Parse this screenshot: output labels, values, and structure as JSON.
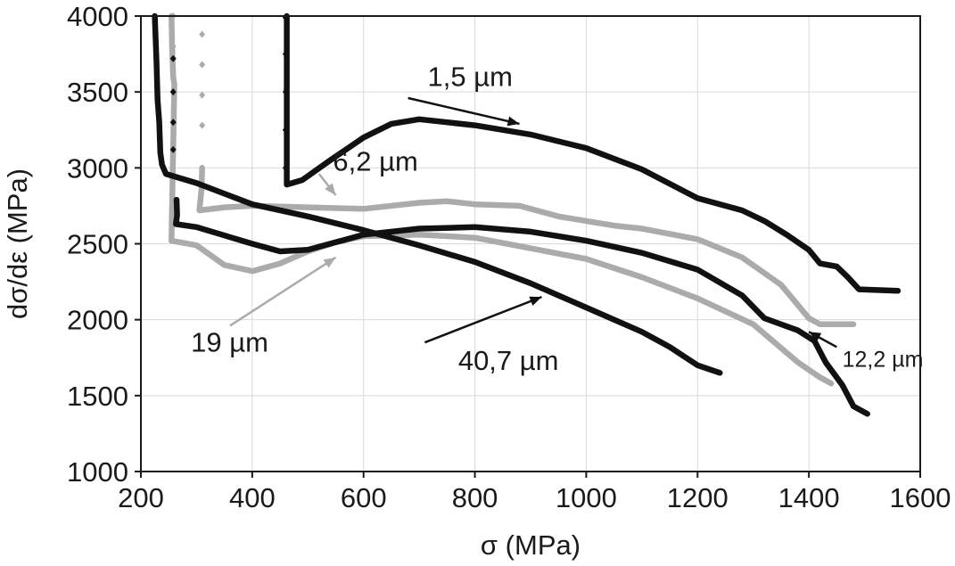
{
  "chart_data": {
    "type": "line",
    "title": "",
    "xlabel": "σ (MPa)",
    "ylabel": "dσ/dε (MPa)",
    "xlim": [
      200,
      1600
    ],
    "ylim": [
      1000,
      4000
    ],
    "xticks": [
      200,
      400,
      600,
      800,
      1000,
      1200,
      1400,
      1600
    ],
    "yticks": [
      1000,
      1500,
      2000,
      2500,
      3000,
      3500,
      4000
    ],
    "xtick_labels": [
      "200",
      "400",
      "600",
      "800",
      "1000",
      "1200",
      "1400",
      "1600"
    ],
    "ytick_labels": [
      "1000",
      "1500",
      "2000",
      "2500",
      "3000",
      "3500",
      "4000"
    ],
    "grid": true,
    "colors": {
      "black": "#111111",
      "gray": "#ababab",
      "axis": "#1a1a1a",
      "grid": "#d9d9d9"
    },
    "series": [
      {
        "name": "1,5 µm",
        "color": "black",
        "points": [
          [
            462,
            4000
          ],
          [
            462,
            3600
          ],
          [
            462,
            3200
          ],
          [
            462,
            2890
          ],
          [
            490,
            2920
          ],
          [
            540,
            3050
          ],
          [
            600,
            3200
          ],
          [
            650,
            3290
          ],
          [
            700,
            3320
          ],
          [
            800,
            3280
          ],
          [
            900,
            3220
          ],
          [
            1000,
            3130
          ],
          [
            1100,
            2990
          ],
          [
            1200,
            2800
          ],
          [
            1280,
            2720
          ],
          [
            1320,
            2650
          ],
          [
            1360,
            2560
          ],
          [
            1400,
            2460
          ],
          [
            1420,
            2370
          ],
          [
            1450,
            2350
          ],
          [
            1470,
            2280
          ],
          [
            1490,
            2200
          ],
          [
            1560,
            2190
          ]
        ],
        "spike_markers": [
          [
            460,
            3990
          ],
          [
            460,
            3750
          ],
          [
            460,
            3500
          ],
          [
            460,
            3250
          ],
          [
            460,
            3000
          ]
        ]
      },
      {
        "name": "6,2 µm",
        "color": "gray",
        "points": [
          [
            310,
            3000
          ],
          [
            309,
            2860
          ],
          [
            305,
            2720
          ],
          [
            350,
            2740
          ],
          [
            400,
            2750
          ],
          [
            500,
            2740
          ],
          [
            600,
            2730
          ],
          [
            700,
            2770
          ],
          [
            750,
            2780
          ],
          [
            800,
            2760
          ],
          [
            880,
            2750
          ],
          [
            950,
            2680
          ],
          [
            1000,
            2650
          ],
          [
            1050,
            2620
          ],
          [
            1100,
            2600
          ],
          [
            1200,
            2530
          ],
          [
            1280,
            2410
          ],
          [
            1350,
            2230
          ],
          [
            1400,
            2010
          ],
          [
            1420,
            1970
          ],
          [
            1480,
            1970
          ]
        ],
        "spike_markers": [
          [
            310,
            3880
          ],
          [
            310,
            3680
          ],
          [
            310,
            3480
          ],
          [
            310,
            3280
          ]
        ]
      },
      {
        "name": "19 µm",
        "color": "gray",
        "points": [
          [
            255,
            4000
          ],
          [
            256,
            3800
          ],
          [
            258,
            3600
          ],
          [
            260,
            3550
          ],
          [
            255,
            2520
          ],
          [
            300,
            2490
          ],
          [
            350,
            2360
          ],
          [
            400,
            2320
          ],
          [
            450,
            2370
          ],
          [
            500,
            2450
          ],
          [
            550,
            2510
          ],
          [
            600,
            2550
          ],
          [
            700,
            2560
          ],
          [
            800,
            2540
          ],
          [
            900,
            2470
          ],
          [
            1000,
            2400
          ],
          [
            1100,
            2280
          ],
          [
            1200,
            2140
          ],
          [
            1300,
            1970
          ],
          [
            1380,
            1720
          ],
          [
            1420,
            1620
          ],
          [
            1440,
            1580
          ]
        ],
        "spike_markers": [
          [
            258,
            4000
          ],
          [
            258,
            3800
          ],
          [
            258,
            3600
          ]
        ]
      },
      {
        "name": "12,2 µm",
        "color": "black",
        "points": [
          [
            264,
            2790
          ],
          [
            265,
            2690
          ],
          [
            263,
            2630
          ],
          [
            300,
            2610
          ],
          [
            400,
            2500
          ],
          [
            450,
            2450
          ],
          [
            500,
            2460
          ],
          [
            550,
            2510
          ],
          [
            600,
            2560
          ],
          [
            700,
            2600
          ],
          [
            800,
            2610
          ],
          [
            900,
            2580
          ],
          [
            1000,
            2520
          ],
          [
            1100,
            2440
          ],
          [
            1200,
            2330
          ],
          [
            1280,
            2160
          ],
          [
            1320,
            2010
          ],
          [
            1380,
            1930
          ],
          [
            1410,
            1860
          ],
          [
            1430,
            1720
          ],
          [
            1460,
            1570
          ],
          [
            1480,
            1430
          ],
          [
            1505,
            1380
          ]
        ],
        "spike_markers": []
      },
      {
        "name": "40,7 µm",
        "color": "black",
        "points": [
          [
            225,
            4000
          ],
          [
            228,
            3700
          ],
          [
            230,
            3450
          ],
          [
            233,
            3300
          ],
          [
            235,
            3100
          ],
          [
            238,
            3020
          ],
          [
            245,
            2960
          ],
          [
            300,
            2900
          ],
          [
            400,
            2760
          ],
          [
            500,
            2680
          ],
          [
            600,
            2590
          ],
          [
            700,
            2490
          ],
          [
            800,
            2380
          ],
          [
            900,
            2240
          ],
          [
            1000,
            2080
          ],
          [
            1100,
            1920
          ],
          [
            1150,
            1820
          ],
          [
            1200,
            1700
          ],
          [
            1240,
            1650
          ]
        ],
        "spike_markers": [
          [
            258,
            3720
          ],
          [
            258,
            3500
          ],
          [
            258,
            3300
          ],
          [
            258,
            3120
          ]
        ]
      }
    ],
    "annotations": [
      {
        "label": "1,5 µm",
        "text_at": [
          715,
          3540
        ],
        "arrow_from": [
          680,
          3460
        ],
        "arrow_to": [
          880,
          3290
        ],
        "color": "black"
      },
      {
        "label": "6,2 µm",
        "text_at": [
          545,
          2980
        ],
        "arrow_from": [
          520,
          2960
        ],
        "arrow_to": [
          550,
          2820
        ],
        "color": "gray"
      },
      {
        "label": "19 µm",
        "text_at": [
          290,
          1790
        ],
        "arrow_from": [
          360,
          1960
        ],
        "arrow_to": [
          550,
          2410
        ],
        "color": "gray"
      },
      {
        "label": "40,7 µm",
        "text_at": [
          770,
          1670
        ],
        "arrow_from": [
          710,
          1850
        ],
        "arrow_to": [
          920,
          2150
        ],
        "color": "black"
      },
      {
        "label": "12,2 µm",
        "text_at": [
          1460,
          1690
        ],
        "arrow_from": [
          1450,
          1820
        ],
        "arrow_to": [
          1400,
          1920
        ],
        "color": "black"
      }
    ]
  }
}
